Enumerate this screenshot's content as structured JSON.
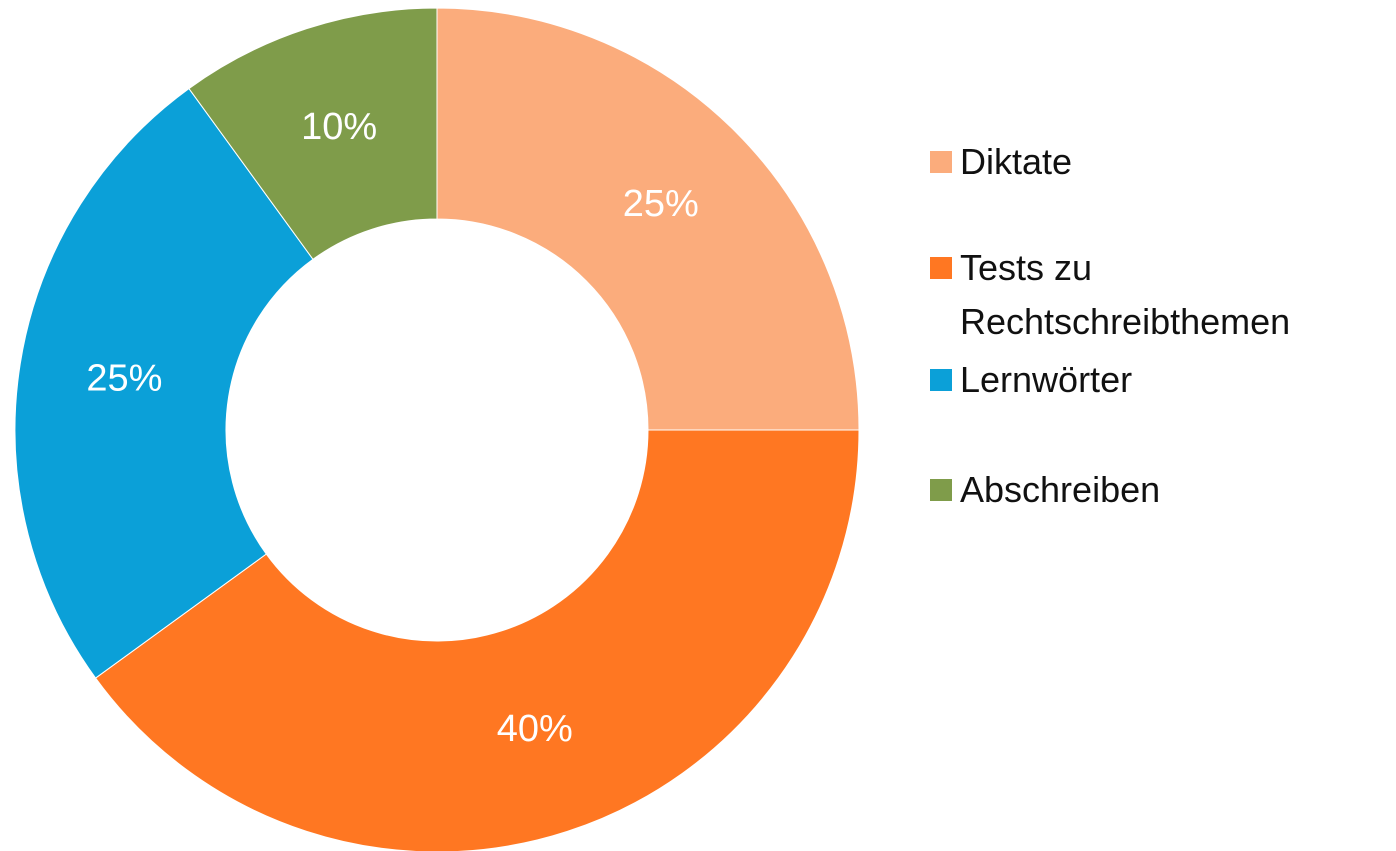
{
  "chart_data": {
    "type": "donut",
    "categories": [
      "Diktate",
      "Tests zu Rechtschreibthemen",
      "Lernwörter",
      "Abschreiben"
    ],
    "values": [
      25,
      40,
      25,
      10
    ],
    "value_labels": [
      "25%",
      "40%",
      "25%",
      "10%"
    ],
    "colors": [
      "#fbac7c",
      "#ff7722",
      "#0ba0d8",
      "#7f9c4a"
    ],
    "legend": "right"
  }
}
